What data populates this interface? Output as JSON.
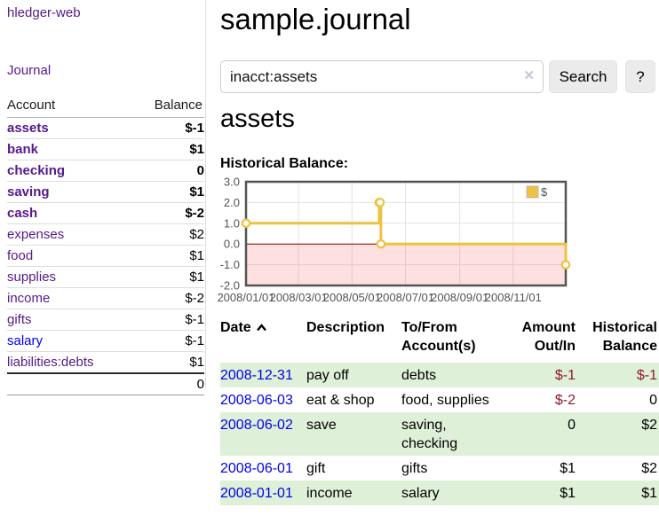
{
  "sidebar": {
    "brand": "hledger-web",
    "journal_link": "Journal",
    "accounts": {
      "headers": {
        "account": "Account",
        "balance": "Balance"
      },
      "rows": [
        {
          "name": "assets",
          "balance": "$-1"
        },
        {
          "name": "bank",
          "balance": "$1"
        },
        {
          "name": "checking",
          "balance": "0"
        },
        {
          "name": "saving",
          "balance": "$1"
        },
        {
          "name": "cash",
          "balance": "$-2"
        },
        {
          "name": "expenses",
          "balance": "$2"
        },
        {
          "name": "food",
          "balance": "$1"
        },
        {
          "name": "supplies",
          "balance": "$1"
        },
        {
          "name": "income",
          "balance": "$-2"
        },
        {
          "name": "gifts",
          "balance": "$-1"
        },
        {
          "name": "salary",
          "balance": "$-1"
        },
        {
          "name": "liabilities:debts",
          "balance": "$1"
        }
      ],
      "total": "0"
    }
  },
  "main": {
    "title": "sample.journal",
    "search": {
      "value": "inacct:assets",
      "clear_icon": "✕",
      "search_button": "Search",
      "help_button": "?"
    },
    "account_heading": "assets",
    "chart_title": "Historical Balance:",
    "register": {
      "headers": {
        "date": "Date",
        "sort_icon": "chevron-up",
        "description": "Description",
        "accounts": "To/From Account(s)",
        "amount": "Amount Out/In",
        "balance": "Historical Balance"
      },
      "rows": [
        {
          "date": "2008-12-31",
          "description": "pay off",
          "accounts": "debts",
          "amount": "$-1",
          "balance": "$-1"
        },
        {
          "date": "2008-06-03",
          "description": "eat & shop",
          "accounts": "food, supplies",
          "amount": "$-2",
          "balance": "0"
        },
        {
          "date": "2008-06-02",
          "description": "save",
          "accounts": "saving, checking",
          "amount": "0",
          "balance": "$2"
        },
        {
          "date": "2008-06-01",
          "description": "gift",
          "accounts": "gifts",
          "amount": "$1",
          "balance": "$2"
        },
        {
          "date": "2008-01-01",
          "description": "income",
          "accounts": "salary",
          "amount": "$1",
          "balance": "$1"
        }
      ]
    }
  },
  "colors": {
    "link_purple": "#551a8b",
    "link_blue": "#0000ee",
    "negative_dark": "#8f1a2b",
    "negative_light": "#c9777b",
    "row_shade_green": "#dff0d8",
    "series_gold": "#EDC240"
  },
  "chart_data": {
    "type": "line",
    "title": "Historical Balance:",
    "series": [
      {
        "name": "$",
        "color": "#EDC240",
        "style": "step-after",
        "points": [
          {
            "date": "2008-01-01",
            "value": 1
          },
          {
            "date": "2008-06-01",
            "value": 2
          },
          {
            "date": "2008-06-02",
            "value": 2
          },
          {
            "date": "2008-06-03",
            "value": 0
          },
          {
            "date": "2008-12-31",
            "value": -1
          }
        ]
      }
    ],
    "xlim": [
      "2008-01-01",
      "2008-12-31"
    ],
    "ylim": [
      -2,
      3
    ],
    "x_ticks": [
      "2008/01/01",
      "2008/03/01",
      "2008/05/01",
      "2008/07/01",
      "2008/09/01",
      "2008/11/01"
    ],
    "y_ticks": [
      3.0,
      2.0,
      1.0,
      0.0,
      -1.0,
      -2.0
    ],
    "grid": true,
    "legend": {
      "label": "$",
      "position": "top-right"
    },
    "negative_region": {
      "from": 0,
      "to": -2,
      "color": "rgba(255,0,0,0.12)",
      "line_color": "#8b0000"
    }
  }
}
